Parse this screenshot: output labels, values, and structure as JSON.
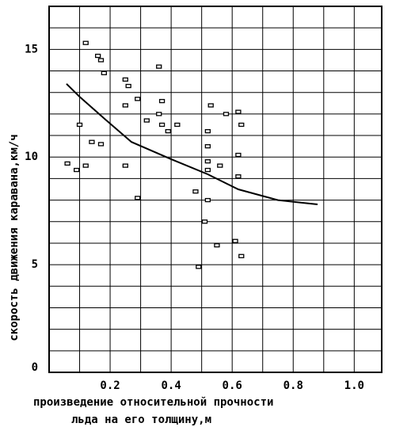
{
  "chart_data": {
    "type": "scatter",
    "xlabel": [
      "произведение  относительной прочности",
      "льда на его толщину,м"
    ],
    "ylabel": "скорость движения каравана,км/ч",
    "xlim": [
      0,
      1.09
    ],
    "ylim": [
      0,
      17
    ],
    "xticks": [
      0.2,
      0.4,
      0.6,
      {
        "value": 1,
        "label": "1.0"
      }
    ],
    "xticks_extra": [
      0.8
    ],
    "yticks": [
      0,
      5,
      10,
      15
    ],
    "grid_x": [
      0.1,
      0.2,
      0.3,
      0.4,
      0.5,
      0.6,
      0.7,
      0.8,
      0.9,
      1.0
    ],
    "grid_y": [
      1,
      2,
      3,
      4,
      5,
      6,
      7,
      8,
      9,
      10,
      11,
      12,
      13,
      14,
      15,
      16
    ],
    "series": [
      {
        "x": [
          0.12,
          0.16,
          0.17,
          0.18,
          0.1,
          0.14,
          0.17,
          0.06,
          0.09,
          0.12,
          0.25,
          0.26,
          0.29,
          0.25,
          0.36,
          0.37,
          0.36,
          0.32,
          0.37,
          0.42,
          0.39,
          0.25,
          0.29,
          0.53,
          0.52,
          0.52,
          0.52,
          0.52,
          0.56,
          0.58,
          0.62,
          0.63,
          0.62,
          0.62,
          0.48,
          0.52,
          0.51,
          0.55,
          0.61,
          0.63,
          0.49
        ],
        "values": [
          15.3,
          14.7,
          14.5,
          13.9,
          11.5,
          10.7,
          10.6,
          9.7,
          9.4,
          9.6,
          13.6,
          13.3,
          12.7,
          12.4,
          14.2,
          12.6,
          12.0,
          11.7,
          11.5,
          11.5,
          11.2,
          9.6,
          8.1,
          12.4,
          11.2,
          10.5,
          9.8,
          9.4,
          9.6,
          12.0,
          12.1,
          11.5,
          10.1,
          9.1,
          8.4,
          8.0,
          7.0,
          5.9,
          6.1,
          5.4,
          4.9
        ],
        "color": "#000000"
      },
      {
        "type": "line",
        "x": [
          0.057,
          0.1,
          0.18,
          0.27,
          0.4,
          0.52,
          0.62,
          0.75,
          0.88
        ],
        "values": [
          13.4,
          12.8,
          11.8,
          10.7,
          9.9,
          9.2,
          8.5,
          8.0,
          7.8
        ],
        "color": "#000000"
      }
    ]
  }
}
